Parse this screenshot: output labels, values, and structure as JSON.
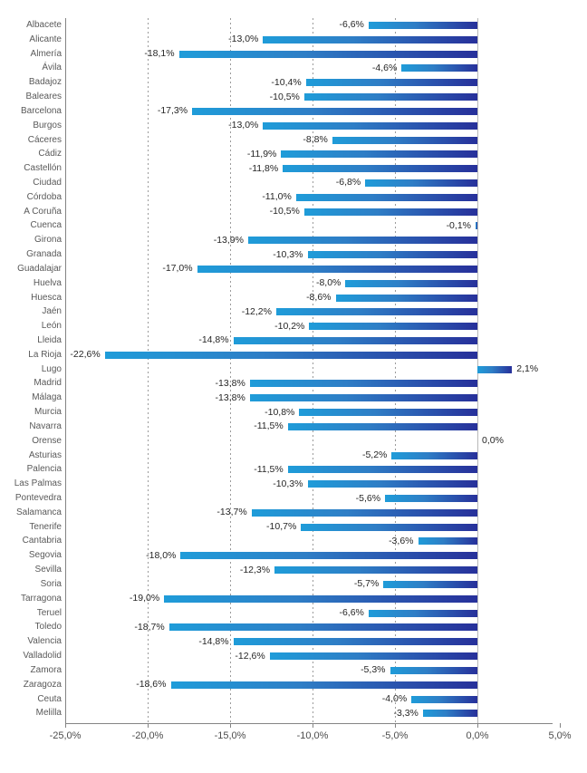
{
  "chart_data": {
    "type": "bar",
    "orientation": "horizontal",
    "title": "",
    "xlabel": "",
    "ylabel": "",
    "xlim": [
      -25,
      5
    ],
    "grid": true,
    "grid_values": [
      -20,
      -15,
      -10,
      -5
    ],
    "tick_values": [
      -25,
      -20,
      -15,
      -10,
      -5,
      0,
      5
    ],
    "tick_labels": [
      "-25,0%",
      "-20,0%",
      "-15,0%",
      "-10,0%",
      "-5,0%",
      "0,0%",
      "5,0%"
    ],
    "categories": [
      "Albacete",
      "Alicante",
      "Almería",
      "Ávila",
      "Badajoz",
      "Baleares",
      "Barcelona",
      "Burgos",
      "Cáceres",
      "Cádiz",
      "Castellón",
      "Ciudad",
      "Córdoba",
      "A Coruña",
      "Cuenca",
      "Girona",
      "Granada",
      "Guadalajar",
      "Huelva",
      "Huesca",
      "Jaén",
      "León",
      "Lleida",
      "La Rioja",
      "Lugo",
      "Madrid",
      "Málaga",
      "Murcia",
      "Navarra",
      "Orense",
      "Asturias",
      "Palencia",
      "Las Palmas",
      "Pontevedra",
      "Salamanca",
      "Tenerife",
      "Cantabria",
      "Segovia",
      "Sevilla",
      "Soria",
      "Tarragona",
      "Teruel",
      "Toledo",
      "Valencia",
      "Valladolid",
      "Zamora",
      "Zaragoza",
      "Ceuta",
      "Melilla"
    ],
    "values": [
      -6.6,
      -13.0,
      -18.1,
      -4.6,
      -10.4,
      -10.5,
      -17.3,
      -13.0,
      -8.8,
      -11.9,
      -11.8,
      -6.8,
      -11.0,
      -10.5,
      -0.1,
      -13.9,
      -10.3,
      -17.0,
      -8.0,
      -8.6,
      -12.2,
      -10.2,
      -14.8,
      -22.6,
      2.1,
      -13.8,
      -13.8,
      -10.8,
      -11.5,
      0.0,
      -5.2,
      -11.5,
      -10.3,
      -5.6,
      -13.7,
      -10.7,
      -3.6,
      -18.0,
      -12.3,
      -5.7,
      -19.0,
      -6.6,
      -18.7,
      -14.8,
      -12.6,
      -5.3,
      -18.6,
      -4.0,
      -3.3
    ],
    "value_labels": [
      "-6,6%",
      "-13,0%",
      "-18,1%",
      "-4,6%",
      "-10,4%",
      "-10,5%",
      "-17,3%",
      "-13,0%",
      "-8,8%",
      "-11,9%",
      "-11,8%",
      "-6,8%",
      "-11,0%",
      "-10,5%",
      "-0,1%",
      "-13,9%",
      "-10,3%",
      "-17,0%",
      "-8,0%",
      "-8,6%",
      "-12,2%",
      "-10,2%",
      "-14,8%",
      "-22,6%",
      "2,1%",
      "-13,8%",
      "-13,8%",
      "-10,8%",
      "-11,5%",
      "0,0%",
      "-5,2%",
      "-11,5%",
      "-10,3%",
      "-5,6%",
      "-13,7%",
      "-10,7%",
      "-3,6%",
      "-18,0%",
      "-12,3%",
      "-5,7%",
      "-19,0%",
      "-6,6%",
      "-18,7%",
      "-14,8%",
      "-12,6%",
      "-5,3%",
      "-18,6%",
      "-4,0%",
      "-3,3%"
    ],
    "legend": null,
    "colors": {
      "bar_gradient_start": "#1f9cd9",
      "bar_gradient_mid": "#2e7ec6",
      "bar_gradient_end": "#27309a",
      "gridline": "#9b9b9b",
      "zero_line": "#b8b8b8",
      "axis_line": "#848484",
      "category_label": "#595959",
      "value_label": "#262626",
      "tick_label": "#4d4d4d"
    }
  }
}
